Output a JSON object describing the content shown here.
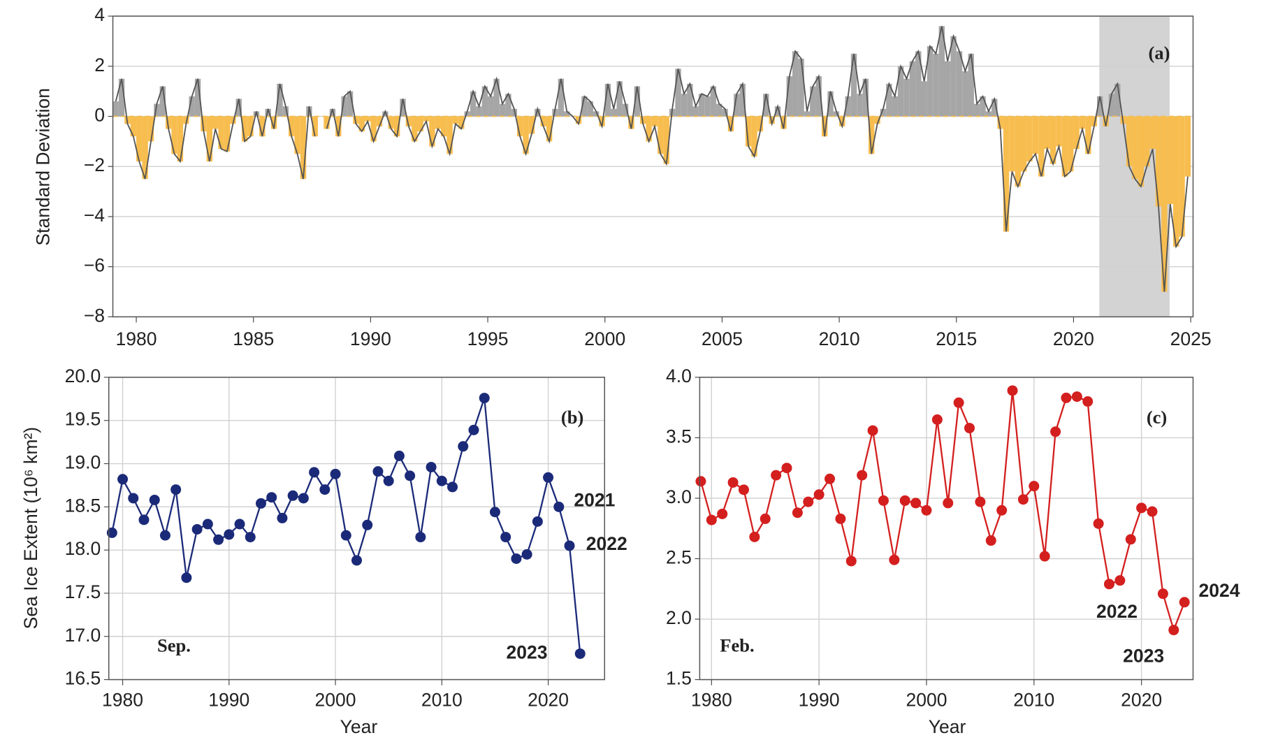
{
  "chart_data": [
    {
      "type": "bar",
      "label": "(a)",
      "ylabel": "Standard Deviation",
      "positive_color": "#a6a6a6",
      "negative_color": "#f7bd4f",
      "line_color": "#555555",
      "highlight_span": [
        2021.1,
        2024.1
      ],
      "highlight_color": "#d3d3d3",
      "xlim": [
        1979,
        2025.1
      ],
      "xticks": [
        1980,
        1985,
        1990,
        1995,
        2000,
        2005,
        2010,
        2015,
        2020,
        2025
      ],
      "ylim": [
        -8,
        4
      ],
      "yticks": [
        {
          "value": -8,
          "label": "−8"
        },
        {
          "value": -6,
          "label": "−6"
        },
        {
          "value": -4,
          "label": "−4"
        },
        {
          "value": -2,
          "label": "−2"
        },
        0,
        2,
        4
      ],
      "grid": true,
      "x": [
        1979,
        1979.25,
        1979.5,
        1979.75,
        1980,
        1980.25,
        1980.5,
        1980.75,
        1981,
        1981.25,
        1981.5,
        1981.75,
        1982,
        1982.25,
        1982.5,
        1982.75,
        1983,
        1983.25,
        1983.5,
        1983.75,
        1984,
        1984.25,
        1984.5,
        1984.75,
        1985,
        1985.25,
        1985.5,
        1985.75,
        1986,
        1986.25,
        1986.5,
        1986.75,
        1987,
        1987.25,
        1987.5,
        1987.75,
        1988,
        1988.25,
        1988.5,
        1988.75,
        1989,
        1989.25,
        1989.5,
        1989.75,
        1990,
        1990.25,
        1990.5,
        1990.75,
        1991,
        1991.25,
        1991.5,
        1991.75,
        1992,
        1992.25,
        1992.5,
        1992.75,
        1993,
        1993.25,
        1993.5,
        1993.75,
        1994,
        1994.25,
        1994.5,
        1994.75,
        1995,
        1995.25,
        1995.5,
        1995.75,
        1996,
        1996.25,
        1996.5,
        1996.75,
        1997,
        1997.25,
        1997.5,
        1997.75,
        1998,
        1998.25,
        1998.5,
        1998.75,
        1999,
        1999.25,
        1999.5,
        1999.75,
        2000,
        2000.25,
        2000.5,
        2000.75,
        2001,
        2001.25,
        2001.5,
        2001.75,
        2002,
        2002.25,
        2002.5,
        2002.75,
        2003,
        2003.25,
        2003.5,
        2003.75,
        2004,
        2004.25,
        2004.5,
        2004.75,
        2005,
        2005.25,
        2005.5,
        2005.75,
        2006,
        2006.25,
        2006.5,
        2006.75,
        2007,
        2007.25,
        2007.5,
        2007.75,
        2008,
        2008.25,
        2008.5,
        2008.75,
        2009,
        2009.25,
        2009.5,
        2009.75,
        2010,
        2010.25,
        2010.5,
        2010.75,
        2011,
        2011.25,
        2011.5,
        2011.75,
        2012,
        2012.25,
        2012.5,
        2012.75,
        2013,
        2013.25,
        2013.5,
        2013.75,
        2014,
        2014.25,
        2014.5,
        2014.75,
        2015,
        2015.25,
        2015.5,
        2015.75,
        2016,
        2016.25,
        2016.5,
        2016.75,
        2017,
        2017.25,
        2017.5,
        2017.75,
        2018,
        2018.25,
        2018.5,
        2018.75,
        2019,
        2019.25,
        2019.5,
        2019.75,
        2020,
        2020.25,
        2020.5,
        2020.75,
        2021,
        2021.25,
        2021.5,
        2021.75,
        2022,
        2022.25,
        2022.5,
        2022.75,
        2023,
        2023.25,
        2023.5,
        2023.75,
        2024,
        2024.25,
        2024.5,
        2024.75
      ],
      "values": [
        0.6,
        1.5,
        -0.3,
        -0.8,
        -1.8,
        -2.5,
        -1.0,
        0.5,
        1.2,
        -0.5,
        -1.5,
        -1.8,
        -0.3,
        0.8,
        1.5,
        -0.6,
        -1.8,
        -0.5,
        -1.3,
        -1.4,
        -0.3,
        0.7,
        -1.0,
        -0.8,
        0.2,
        -0.8,
        0.3,
        -0.5,
        1.3,
        0.4,
        -0.8,
        -1.5,
        -2.5,
        0.4,
        -0.8,
        null,
        -0.5,
        0.3,
        -0.8,
        0.8,
        1.0,
        -0.3,
        -0.6,
        -0.2,
        -1.0,
        -0.4,
        0.2,
        -0.5,
        -0.8,
        0.7,
        -0.4,
        -1.0,
        -0.6,
        -0.2,
        -1.2,
        -0.5,
        -0.8,
        -1.5,
        -0.3,
        -0.5,
        0.2,
        1.0,
        0.4,
        1.2,
        0.8,
        1.5,
        0.5,
        0.9,
        0.3,
        -0.8,
        -1.5,
        -0.7,
        0.3,
        -0.4,
        -1.0,
        0.3,
        1.5,
        0.2,
        0.0,
        -0.3,
        0.8,
        0.6,
        0.2,
        -0.4,
        1.3,
        0.3,
        1.4,
        0.5,
        -0.5,
        1.2,
        -0.3,
        -1.0,
        -0.4,
        -1.5,
        -1.9,
        0.3,
        1.9,
        0.9,
        1.3,
        0.4,
        0.9,
        0.8,
        1.2,
        0.5,
        0.3,
        -0.6,
        0.9,
        1.3,
        -1.2,
        -1.6,
        -0.6,
        0.9,
        -0.3,
        0.4,
        -0.5,
        1.6,
        2.6,
        2.3,
        0.2,
        1.2,
        1.6,
        -0.8,
        1.0,
        0.2,
        -0.4,
        0.8,
        2.5,
        0.9,
        1.5,
        -1.5,
        -0.3,
        0.3,
        1.3,
        0.8,
        2.0,
        1.5,
        2.2,
        2.6,
        1.4,
        2.8,
        2.5,
        3.6,
        2.2,
        3.2,
        2.6,
        1.8,
        2.5,
        0.5,
        0.8,
        0.2,
        0.7,
        -0.5,
        -4.6,
        -2.2,
        -2.8,
        -2.2,
        -1.8,
        -1.5,
        -2.4,
        -1.3,
        -1.9,
        -1.2,
        -2.4,
        -2.2,
        -1.3,
        -0.5,
        -1.5,
        -0.4,
        0.8,
        -0.4,
        0.9,
        1.3,
        -0.3,
        -2.0,
        -2.5,
        -2.8,
        -2.0,
        -1.3,
        -3.6,
        -7.0,
        -3.5,
        -5.2,
        -4.8,
        -2.4
      ]
    },
    {
      "type": "line",
      "label": "(b)",
      "month": "Sep.",
      "ylabel": "Sea Ice Extent (10⁶ km²)",
      "xlabel": "Year",
      "color": "#1b2a78",
      "xlim": [
        1978.7,
        2025.3
      ],
      "xticks": [
        1980,
        1990,
        2000,
        2010,
        2020
      ],
      "ylim": [
        16.5,
        20.0
      ],
      "yticks": [
        16.5,
        {
          "value": 17,
          "label": "17.0"
        },
        17.5,
        {
          "value": 18,
          "label": "18.0"
        },
        18.5,
        {
          "value": 19,
          "label": "19.0"
        },
        19.5,
        {
          "value": 20,
          "label": "20.0"
        }
      ],
      "grid": true,
      "x": [
        1979,
        1980,
        1981,
        1982,
        1983,
        1984,
        1985,
        1986,
        1987,
        1988,
        1989,
        1990,
        1991,
        1992,
        1993,
        1994,
        1995,
        1996,
        1997,
        1998,
        1999,
        2000,
        2001,
        2002,
        2003,
        2004,
        2005,
        2006,
        2007,
        2008,
        2009,
        2010,
        2011,
        2012,
        2013,
        2014,
        2015,
        2016,
        2017,
        2018,
        2019,
        2020,
        2021,
        2022,
        2023
      ],
      "values": [
        18.2,
        18.82,
        18.6,
        18.35,
        18.58,
        18.17,
        18.7,
        17.68,
        18.24,
        18.3,
        18.12,
        18.18,
        18.3,
        18.15,
        18.54,
        18.61,
        18.37,
        18.63,
        18.6,
        18.9,
        18.7,
        18.88,
        18.17,
        17.88,
        18.29,
        18.91,
        18.8,
        19.09,
        18.86,
        18.15,
        18.96,
        18.8,
        18.73,
        19.2,
        19.39,
        19.76,
        18.44,
        18.15,
        17.9,
        17.95,
        18.33,
        18.84,
        18.5,
        18.05,
        16.8
      ],
      "annotations": [
        "2021",
        "2022",
        "2023"
      ]
    },
    {
      "type": "line",
      "label": "(c)",
      "month": "Feb.",
      "xlabel": "Year",
      "color": "#d41f1f",
      "xlim": [
        1978.9,
        2024.8
      ],
      "xticks": [
        1980,
        1990,
        2000,
        2010,
        2020
      ],
      "ylim": [
        1.5,
        4.0
      ],
      "yticks": [
        1.5,
        {
          "value": 2,
          "label": "2.0"
        },
        2.5,
        {
          "value": 3,
          "label": "3.0"
        },
        3.5,
        {
          "value": 4,
          "label": "4.0"
        }
      ],
      "grid": true,
      "x": [
        1979,
        1980,
        1981,
        1982,
        1983,
        1984,
        1985,
        1986,
        1987,
        1988,
        1989,
        1990,
        1991,
        1992,
        1993,
        1994,
        1995,
        1996,
        1997,
        1998,
        1999,
        2000,
        2001,
        2002,
        2003,
        2004,
        2005,
        2006,
        2007,
        2008,
        2009,
        2010,
        2011,
        2012,
        2013,
        2014,
        2015,
        2016,
        2017,
        2018,
        2019,
        2020,
        2021,
        2022,
        2023,
        2024
      ],
      "values": [
        3.14,
        2.82,
        2.87,
        3.13,
        3.07,
        2.68,
        2.83,
        3.19,
        3.25,
        2.88,
        2.97,
        3.03,
        3.16,
        2.83,
        2.48,
        3.19,
        3.56,
        2.98,
        2.49,
        2.98,
        2.96,
        2.9,
        3.65,
        2.96,
        3.79,
        3.58,
        2.97,
        2.65,
        2.9,
        3.89,
        2.99,
        3.1,
        2.52,
        3.55,
        3.83,
        3.84,
        3.8,
        2.79,
        2.29,
        2.32,
        2.66,
        2.92,
        2.89,
        2.21,
        1.91,
        2.14
      ],
      "annotations": [
        "2022",
        "2023",
        "2024"
      ]
    }
  ]
}
